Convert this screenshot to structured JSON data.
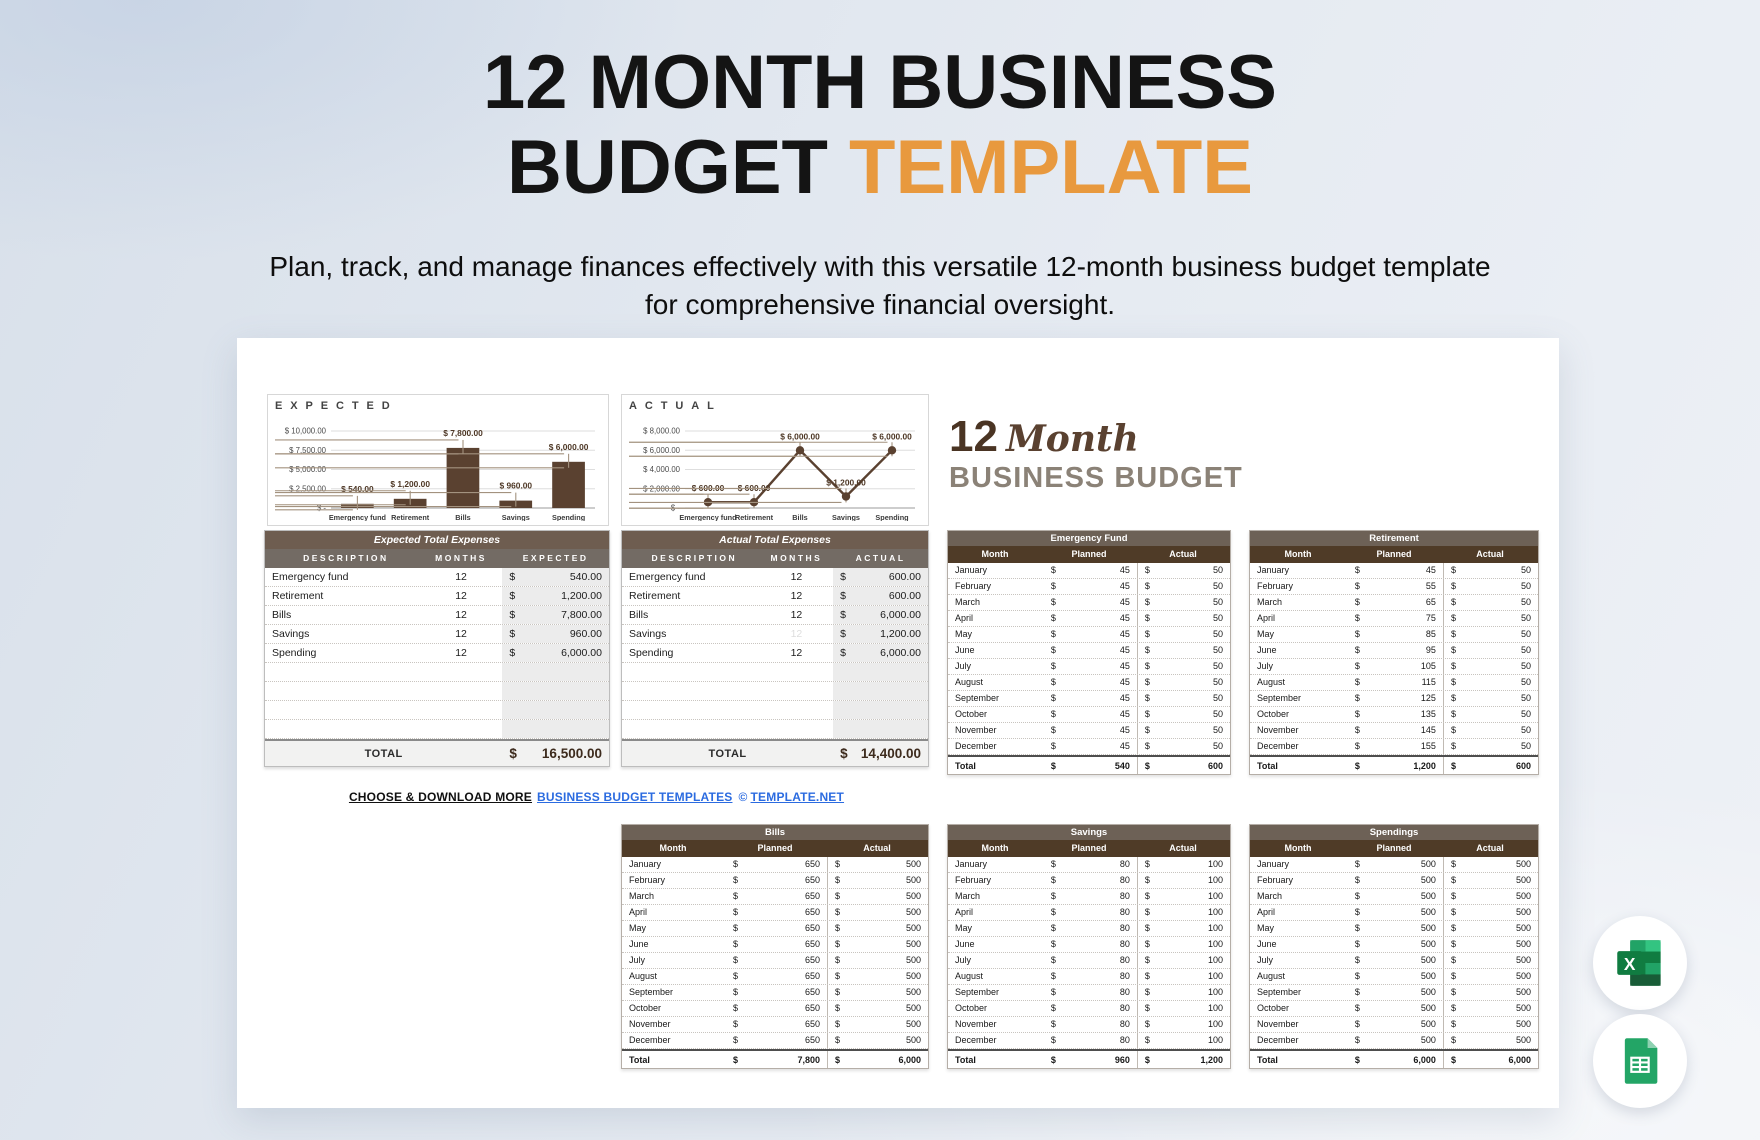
{
  "header": {
    "title_line1": "12 MONTH BUSINESS",
    "title_line2_dark": "BUDGET ",
    "title_line2_accent": "TEMPLATE",
    "subtitle_line1": "Plan, track, and manage finances effectively with this versatile 12-month business budget template",
    "subtitle_line2": "for comprehensive financial oversight."
  },
  "logo": {
    "number": "12",
    "script": "Month",
    "name": "BUSINESS BUDGET"
  },
  "colors": {
    "accent_orange": "#E8993E",
    "bar_brown": "#5a4130",
    "value_label_brown": "#4e3826",
    "expense_title_bar": "#6e5d50",
    "expense_header": "#736b64",
    "month_title_bar": "#6d6156",
    "month_header_brown": "#4f3b27",
    "link_blue": "#2b6be0"
  },
  "chart_data": [
    {
      "type": "bar",
      "title": "EXPECTED",
      "categories": [
        "Emergency fund",
        "Retirement",
        "Bills",
        "Savings",
        "Spending"
      ],
      "values": [
        540,
        1200,
        7800,
        960,
        6000
      ],
      "point_labels": [
        "$ 540.00",
        "$ 1,200.00",
        "$ 7,800.00",
        "$ 960.00",
        "$ 6,000.00"
      ],
      "ylim": [
        0,
        10000
      ],
      "ytick_labels_bottom_to_top": [
        "$ -",
        "$ 2,500.00",
        "$ 5,000.00",
        "$ 7,500.00",
        "$ 10,000.00"
      ],
      "grid": true,
      "legend": "none",
      "color": "#5a4130"
    },
    {
      "type": "line",
      "title": "ACTUAL",
      "categories": [
        "Emergency fund",
        "Retirement",
        "Bills",
        "Savings",
        "Spending"
      ],
      "values": [
        600,
        600,
        6000,
        1200,
        6000
      ],
      "point_labels": [
        "$ 600.00",
        "$ 600.00",
        "$ 6,000.00",
        "$ 1,200.00",
        "$ 6,000.00"
      ],
      "ylim": [
        0,
        8000
      ],
      "ytick_labels_bottom_to_top": [
        "$ -",
        "$ 2,000.00",
        "$ 4,000.00",
        "$ 6,000.00",
        "$ 8,000.00"
      ],
      "grid": true,
      "legend": "none",
      "color": "#5a4130"
    }
  ],
  "expense_tables": [
    {
      "title": "Expected Total Expenses",
      "columns": [
        "DESCRIPTION",
        "MONTHS",
        "EXPECTED"
      ],
      "rows": [
        {
          "description": "Emergency fund",
          "months": "12",
          "amount": "540.00",
          "months_faint": false
        },
        {
          "description": "Retirement",
          "months": "12",
          "amount": "1,200.00",
          "months_faint": false
        },
        {
          "description": "Bills",
          "months": "12",
          "amount": "7,800.00",
          "months_faint": false
        },
        {
          "description": "Savings",
          "months": "12",
          "amount": "960.00",
          "months_faint": false
        },
        {
          "description": "Spending",
          "months": "12",
          "amount": "6,000.00",
          "months_faint": false
        }
      ],
      "empty_rows": 4,
      "currency": "$",
      "total_label": "TOTAL",
      "total_value": "16,500.00"
    },
    {
      "title": "Actual Total Expenses",
      "columns": [
        "DESCRIPTION",
        "MONTHS",
        "ACTUAL"
      ],
      "rows": [
        {
          "description": "Emergency fund",
          "months": "12",
          "amount": "600.00",
          "months_faint": false
        },
        {
          "description": "Retirement",
          "months": "12",
          "amount": "600.00",
          "months_faint": false
        },
        {
          "description": "Bills",
          "months": "12",
          "amount": "6,000.00",
          "months_faint": false
        },
        {
          "description": "Savings",
          "months": "12",
          "amount": "1,200.00",
          "months_faint": true
        },
        {
          "description": "Spending",
          "months": "12",
          "amount": "6,000.00",
          "months_faint": false
        }
      ],
      "empty_rows": 4,
      "currency": "$",
      "total_label": "TOTAL",
      "total_value": "14,400.00"
    }
  ],
  "month_tables": [
    {
      "title": "Emergency Fund",
      "columns": [
        "Month",
        "Planned",
        "Actual"
      ],
      "months": [
        "January",
        "February",
        "March",
        "April",
        "May",
        "June",
        "July",
        "August",
        "September",
        "October",
        "November",
        "December"
      ],
      "planned": [
        "45",
        "45",
        "45",
        "45",
        "45",
        "45",
        "45",
        "45",
        "45",
        "45",
        "45",
        "45"
      ],
      "actual": [
        "50",
        "50",
        "50",
        "50",
        "50",
        "50",
        "50",
        "50",
        "50",
        "50",
        "50",
        "50"
      ],
      "total": {
        "label": "Total",
        "planned": "540",
        "actual": "600"
      }
    },
    {
      "title": "Retirement",
      "columns": [
        "Month",
        "Planned",
        "Actual"
      ],
      "months": [
        "January",
        "February",
        "March",
        "April",
        "May",
        "June",
        "July",
        "August",
        "September",
        "October",
        "November",
        "December"
      ],
      "planned": [
        "45",
        "55",
        "65",
        "75",
        "85",
        "95",
        "105",
        "115",
        "125",
        "135",
        "145",
        "155"
      ],
      "actual": [
        "50",
        "50",
        "50",
        "50",
        "50",
        "50",
        "50",
        "50",
        "50",
        "50",
        "50",
        "50"
      ],
      "total": {
        "label": "Total",
        "planned": "1,200",
        "actual": "600"
      }
    },
    {
      "title": "Bills",
      "columns": [
        "Month",
        "Planned",
        "Actual"
      ],
      "months": [
        "January",
        "February",
        "March",
        "April",
        "May",
        "June",
        "July",
        "August",
        "September",
        "October",
        "November",
        "December"
      ],
      "planned": [
        "650",
        "650",
        "650",
        "650",
        "650",
        "650",
        "650",
        "650",
        "650",
        "650",
        "650",
        "650"
      ],
      "actual": [
        "500",
        "500",
        "500",
        "500",
        "500",
        "500",
        "500",
        "500",
        "500",
        "500",
        "500",
        "500"
      ],
      "total": {
        "label": "Total",
        "planned": "7,800",
        "actual": "6,000"
      }
    },
    {
      "title": "Savings",
      "columns": [
        "Month",
        "Planned",
        "Actual"
      ],
      "months": [
        "January",
        "February",
        "March",
        "April",
        "May",
        "June",
        "July",
        "August",
        "September",
        "October",
        "November",
        "December"
      ],
      "planned": [
        "80",
        "80",
        "80",
        "80",
        "80",
        "80",
        "80",
        "80",
        "80",
        "80",
        "80",
        "80"
      ],
      "actual": [
        "100",
        "100",
        "100",
        "100",
        "100",
        "100",
        "100",
        "100",
        "100",
        "100",
        "100",
        "100"
      ],
      "total": {
        "label": "Total",
        "planned": "960",
        "actual": "1,200"
      }
    },
    {
      "title": "Spendings",
      "columns": [
        "Month",
        "Planned",
        "Actual"
      ],
      "months": [
        "January",
        "February",
        "March",
        "April",
        "May",
        "June",
        "July",
        "August",
        "September",
        "October",
        "November",
        "December"
      ],
      "planned": [
        "500",
        "500",
        "500",
        "500",
        "500",
        "500",
        "500",
        "500",
        "500",
        "500",
        "500",
        "500"
      ],
      "actual": [
        "500",
        "500",
        "500",
        "500",
        "500",
        "500",
        "500",
        "500",
        "500",
        "500",
        "500",
        "500"
      ],
      "total": {
        "label": "Total",
        "planned": "6,000",
        "actual": "6,000"
      }
    }
  ],
  "footer": {
    "prefix": "CHOOSE & DOWNLOAD MORE",
    "link": "BUSINESS BUDGET TEMPLATES",
    "copyright": "©",
    "site": "TEMPLATE.NET"
  },
  "badges": [
    {
      "icon": "microsoft-excel-icon"
    },
    {
      "icon": "google-sheets-icon"
    }
  ]
}
